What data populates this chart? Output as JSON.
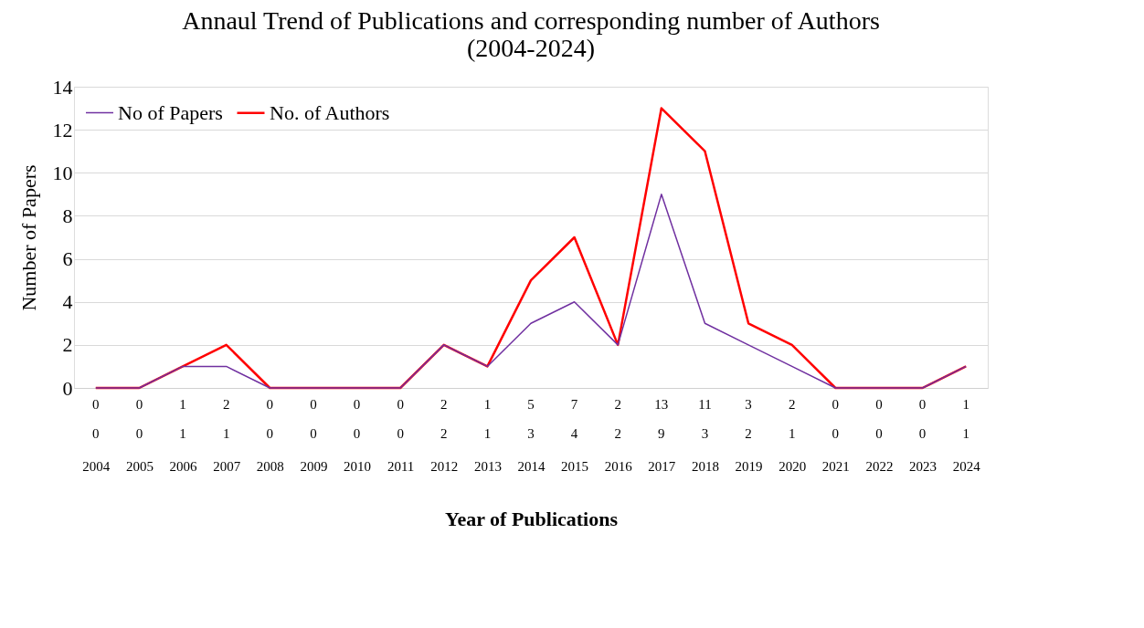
{
  "chart_data": {
    "type": "line",
    "title": "Annaul Trend of Publications and corresponding number of Authors\n(2004-2024)",
    "xlabel": "Year of Publications",
    "ylabel": "Number of  Papers",
    "categories": [
      "2004",
      "2005",
      "2006",
      "2007",
      "2008",
      "2009",
      "2010",
      "2011",
      "2012",
      "2013",
      "2014",
      "2015",
      "2016",
      "2017",
      "2018",
      "2019",
      "2020",
      "2021",
      "2022",
      "2023",
      "2024"
    ],
    "series": [
      {
        "name": "No of Papers",
        "color": "#7030a0",
        "values": [
          0,
          0,
          1,
          1,
          0,
          0,
          0,
          0,
          2,
          1,
          3,
          4,
          2,
          9,
          3,
          2,
          1,
          0,
          0,
          0,
          1
        ]
      },
      {
        "name": "No. of Authors",
        "color": "#ff0000",
        "values": [
          0,
          0,
          1,
          2,
          0,
          0,
          0,
          0,
          2,
          1,
          5,
          7,
          2,
          13,
          11,
          3,
          2,
          0,
          0,
          0,
          1
        ]
      }
    ],
    "ylim": [
      0,
      14
    ],
    "yticks": [
      0,
      2,
      4,
      6,
      8,
      10,
      12,
      14
    ],
    "grid": "y",
    "legend": "top left",
    "data_labels": true,
    "marker": "none",
    "line_style": "solid"
  }
}
